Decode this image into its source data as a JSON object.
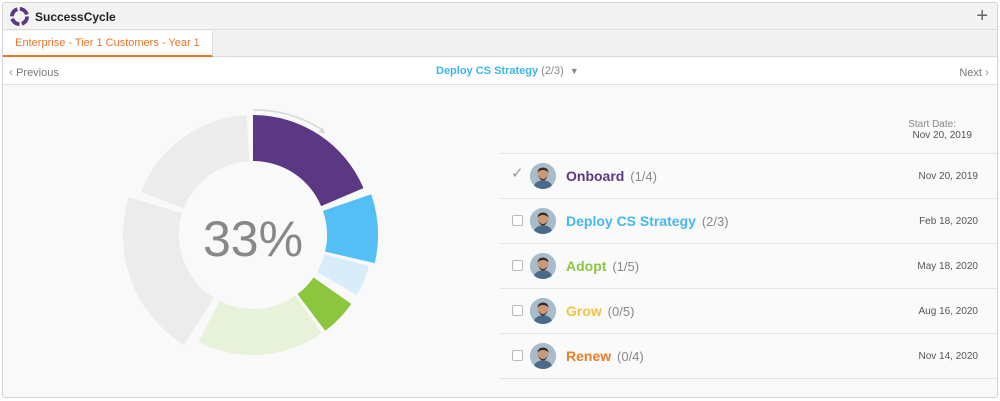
{
  "app": {
    "title": "SuccessCycle",
    "add_label": "+"
  },
  "tab": {
    "label": "Enterprise - Tier 1 Customers - Year 1"
  },
  "nav": {
    "previous_label": "Previous",
    "next_label": "Next",
    "current_stage": "Deploy CS Strategy",
    "current_count": "(2/3)"
  },
  "progress": {
    "percent_label": "33%",
    "value": 0.33
  },
  "start": {
    "label": "Start Date:",
    "value": "Nov 20, 2019"
  },
  "stages": [
    {
      "name": "Onboard",
      "count": "(1/4)",
      "date": "Nov 20, 2019",
      "color": "#5c3784",
      "completed": true
    },
    {
      "name": "Deploy CS Strategy",
      "count": "(2/3)",
      "date": "Feb 18, 2020",
      "color": "#43b8ee",
      "completed": false
    },
    {
      "name": "Adopt",
      "count": "(1/5)",
      "date": "May 18, 2020",
      "color": "#8cc63f",
      "completed": false
    },
    {
      "name": "Grow",
      "count": "(0/5)",
      "date": "Aug 16, 2020",
      "color": "#f5c242",
      "completed": false
    },
    {
      "name": "Renew",
      "count": "(0/4)",
      "date": "Nov 14, 2020",
      "color": "#ee7d2a",
      "completed": false
    }
  ],
  "colors": {
    "accent": "#e8742a",
    "onboard": "#5c3784",
    "deploy": "#53bff5",
    "deploy_light": "#d8edf9",
    "adopt": "#8cc63f",
    "adopt_light": "#e8f1da",
    "inactive": "#ececec"
  },
  "icons": {
    "logo": "successcycle-logo-icon",
    "add": "plus-icon",
    "prev": "chevron-left-icon",
    "next": "chevron-right-icon",
    "dropdown": "caret-down-icon",
    "check": "checkmark-icon"
  }
}
